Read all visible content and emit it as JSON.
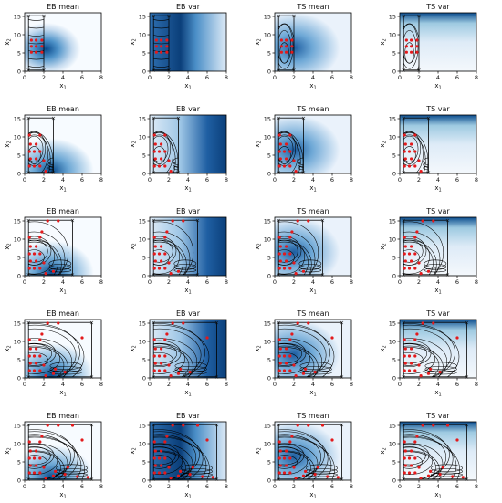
{
  "chart_data": {
    "type": "heatmap",
    "description_free": true,
    "rows": 5,
    "columns": [
      "EB mean",
      "EB var",
      "TS mean",
      "TS var"
    ],
    "xlabel_main": "x",
    "xlabel_sub": "1",
    "ylabel_main": "x",
    "ylabel_sub": "2",
    "xticks": [
      0,
      2,
      4,
      6,
      8
    ],
    "yticks": [
      0,
      5,
      10,
      15
    ],
    "xlim": [
      0,
      8
    ],
    "ylim": [
      0,
      16
    ],
    "colors": {
      "low": "#f7fbff",
      "high": "#08306b",
      "point": "#e31a1c",
      "contour": "#000000"
    },
    "region_x_max": [
      2,
      3,
      5,
      7,
      7
    ],
    "red_points_by_row": [
      [
        [
          0.7,
          5.2
        ],
        [
          1.2,
          5.2
        ],
        [
          1.8,
          5.2
        ],
        [
          0.7,
          6.8
        ],
        [
          1.2,
          6.8
        ],
        [
          1.8,
          6.8
        ],
        [
          0.7,
          8.5
        ],
        [
          1.2,
          8.5
        ],
        [
          1.8,
          8.5
        ]
      ],
      [
        [
          0.5,
          2.0
        ],
        [
          1.0,
          2.0
        ],
        [
          1.6,
          2.0
        ],
        [
          0.6,
          4.0
        ],
        [
          1.2,
          4.0
        ],
        [
          0.5,
          6.0
        ],
        [
          1.0,
          6.0
        ],
        [
          1.6,
          6.0
        ],
        [
          0.6,
          8.0
        ],
        [
          1.2,
          8.0
        ],
        [
          0.5,
          10.5
        ],
        [
          1.6,
          10.5
        ],
        [
          2.2,
          0.6
        ],
        [
          2.0,
          3.5
        ]
      ],
      [
        [
          0.5,
          2.0
        ],
        [
          1.0,
          2.0
        ],
        [
          1.6,
          2.0
        ],
        [
          0.6,
          4.0
        ],
        [
          1.2,
          4.0
        ],
        [
          0.5,
          6.0
        ],
        [
          1.0,
          6.0
        ],
        [
          1.6,
          6.0
        ],
        [
          0.6,
          8.0
        ],
        [
          1.2,
          8.0
        ],
        [
          0.5,
          10.5
        ],
        [
          1.6,
          10.5
        ],
        [
          2.2,
          0.6
        ],
        [
          2.0,
          3.5
        ],
        [
          3.0,
          1.2
        ],
        [
          2.4,
          15.0
        ],
        [
          3.5,
          15.0
        ],
        [
          1.8,
          12.0
        ]
      ],
      [
        [
          0.5,
          2.0
        ],
        [
          1.0,
          2.0
        ],
        [
          1.6,
          2.0
        ],
        [
          0.6,
          4.0
        ],
        [
          1.2,
          4.0
        ],
        [
          0.5,
          6.0
        ],
        [
          1.0,
          6.0
        ],
        [
          1.6,
          6.0
        ],
        [
          0.6,
          8.0
        ],
        [
          1.2,
          8.0
        ],
        [
          0.5,
          10.5
        ],
        [
          1.6,
          10.5
        ],
        [
          2.2,
          0.6
        ],
        [
          2.0,
          3.5
        ],
        [
          3.0,
          1.2
        ],
        [
          2.4,
          15.0
        ],
        [
          3.5,
          15.0
        ],
        [
          1.8,
          12.0
        ],
        [
          4.2,
          1.6
        ],
        [
          3.2,
          2.4
        ],
        [
          6.0,
          11.0
        ]
      ],
      [
        [
          0.5,
          2.0
        ],
        [
          1.0,
          2.0
        ],
        [
          1.6,
          2.0
        ],
        [
          0.6,
          4.0
        ],
        [
          1.2,
          4.0
        ],
        [
          0.5,
          6.0
        ],
        [
          1.0,
          6.0
        ],
        [
          1.6,
          6.0
        ],
        [
          0.6,
          8.0
        ],
        [
          1.2,
          8.0
        ],
        [
          0.5,
          10.5
        ],
        [
          1.6,
          10.5
        ],
        [
          2.2,
          0.6
        ],
        [
          2.0,
          3.5
        ],
        [
          3.0,
          1.2
        ],
        [
          2.4,
          15.0
        ],
        [
          3.5,
          15.0
        ],
        [
          1.8,
          12.0
        ],
        [
          4.2,
          1.6
        ],
        [
          3.2,
          2.4
        ],
        [
          6.0,
          11.0
        ],
        [
          5.5,
          1.0
        ],
        [
          4.5,
          3.5
        ],
        [
          6.6,
          0.8
        ],
        [
          5.0,
          15.0
        ]
      ]
    ]
  }
}
